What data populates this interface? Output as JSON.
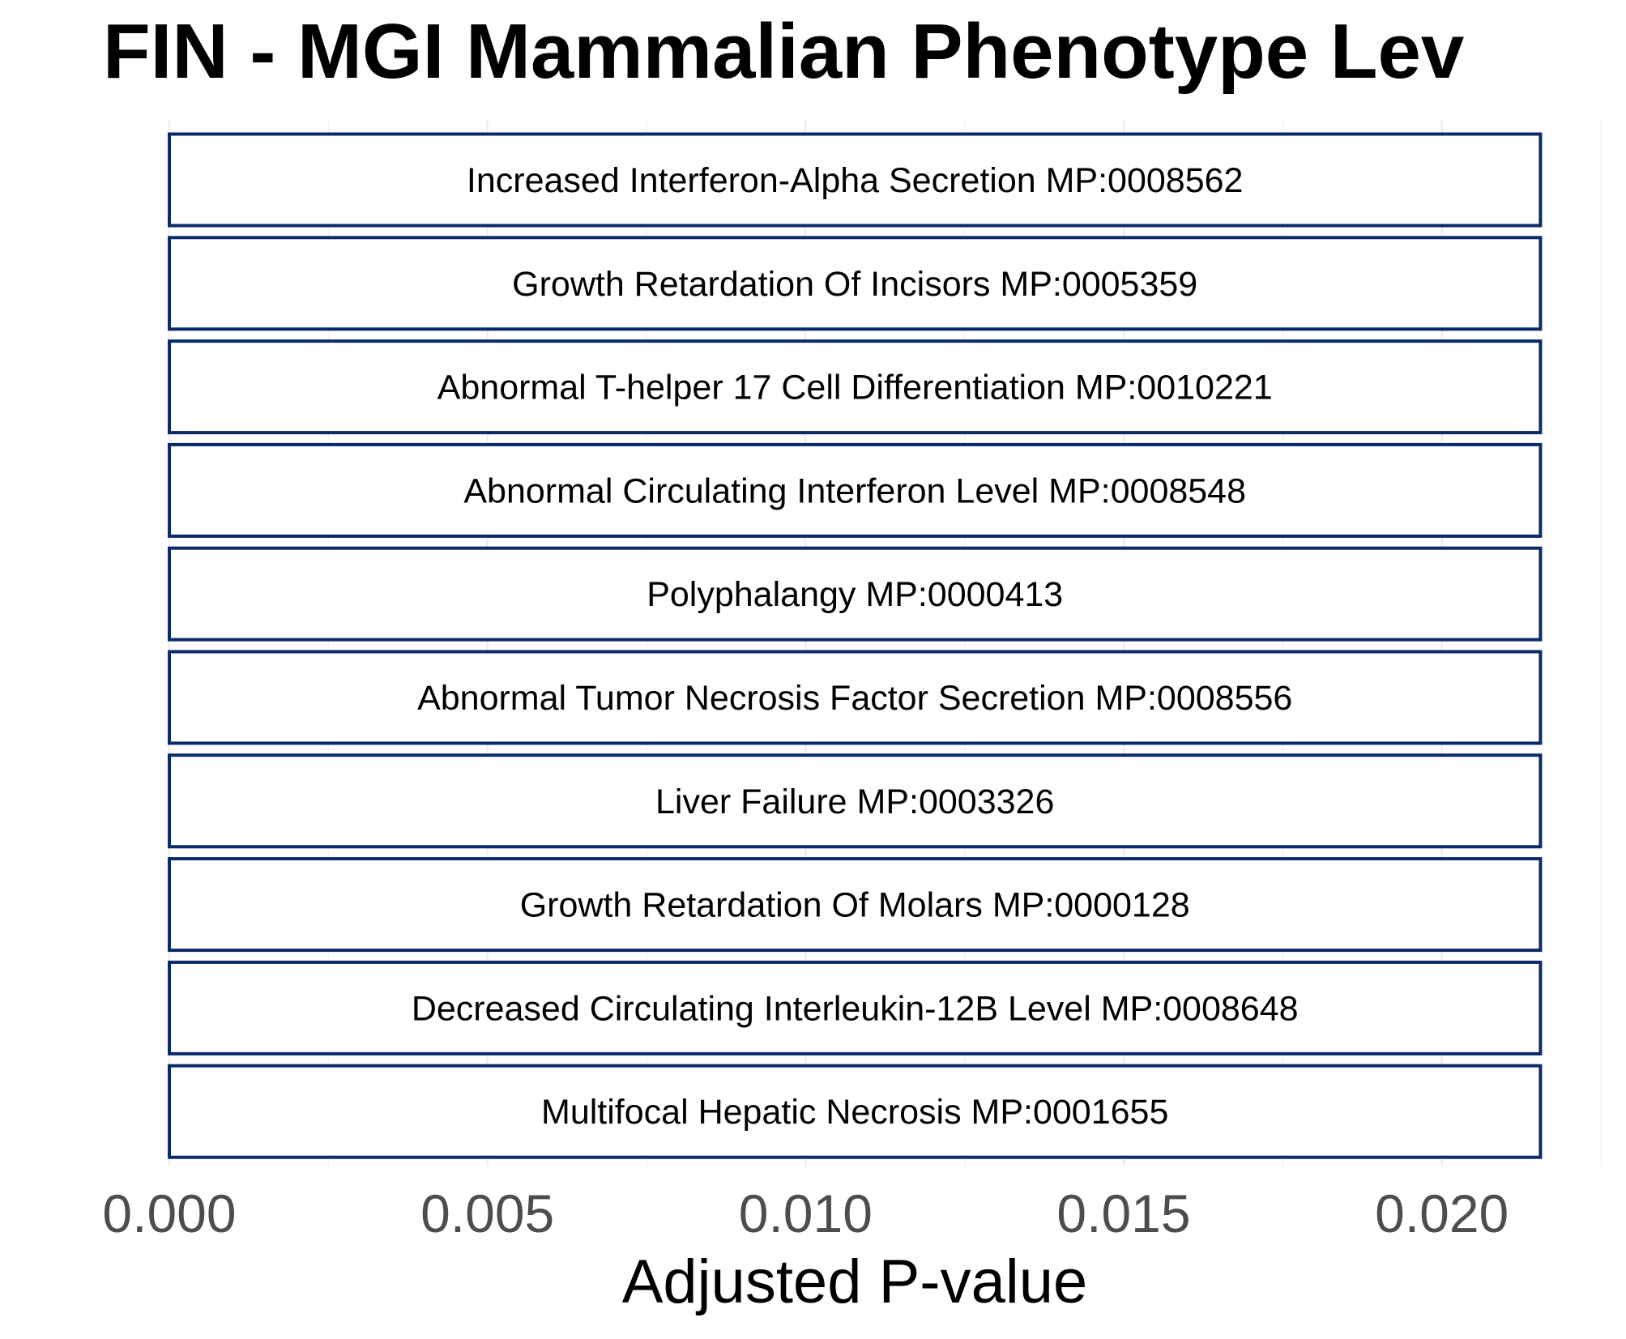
{
  "chart_data": {
    "type": "bar",
    "orientation": "horizontal",
    "title": "FIN  -  MGI Mammalian Phenotype Lev",
    "xlabel": "Adjusted P-value",
    "ylabel": "",
    "xlim": [
      0,
      0.0225
    ],
    "xticks": [
      0.0,
      0.005,
      0.01,
      0.015,
      0.02
    ],
    "xtick_labels": [
      "0.000",
      "0.005",
      "0.010",
      "0.015",
      "0.020"
    ],
    "grid": true,
    "categories": [
      "Increased Interferon-Alpha Secretion MP:0008562",
      "Growth Retardation Of Incisors MP:0005359",
      "Abnormal T-helper 17 Cell Differentiation MP:0010221",
      "Abnormal Circulating Interferon Level MP:0008548",
      "Polyphalangy MP:0000413",
      "Abnormal Tumor Necrosis Factor Secretion MP:0008556",
      "Liver Failure MP:0003326",
      "Growth Retardation Of Molars MP:0000128",
      "Decreased Circulating Interleukin-12B Level MP:0008648",
      "Multifocal Hepatic Necrosis MP:0001655"
    ],
    "values": [
      0.02155,
      0.02155,
      0.02155,
      0.02155,
      0.02155,
      0.02155,
      0.02155,
      0.02155,
      0.02155,
      0.02155
    ],
    "bar_fill": "#ffffff",
    "bar_outline": "#0b2a6b"
  }
}
